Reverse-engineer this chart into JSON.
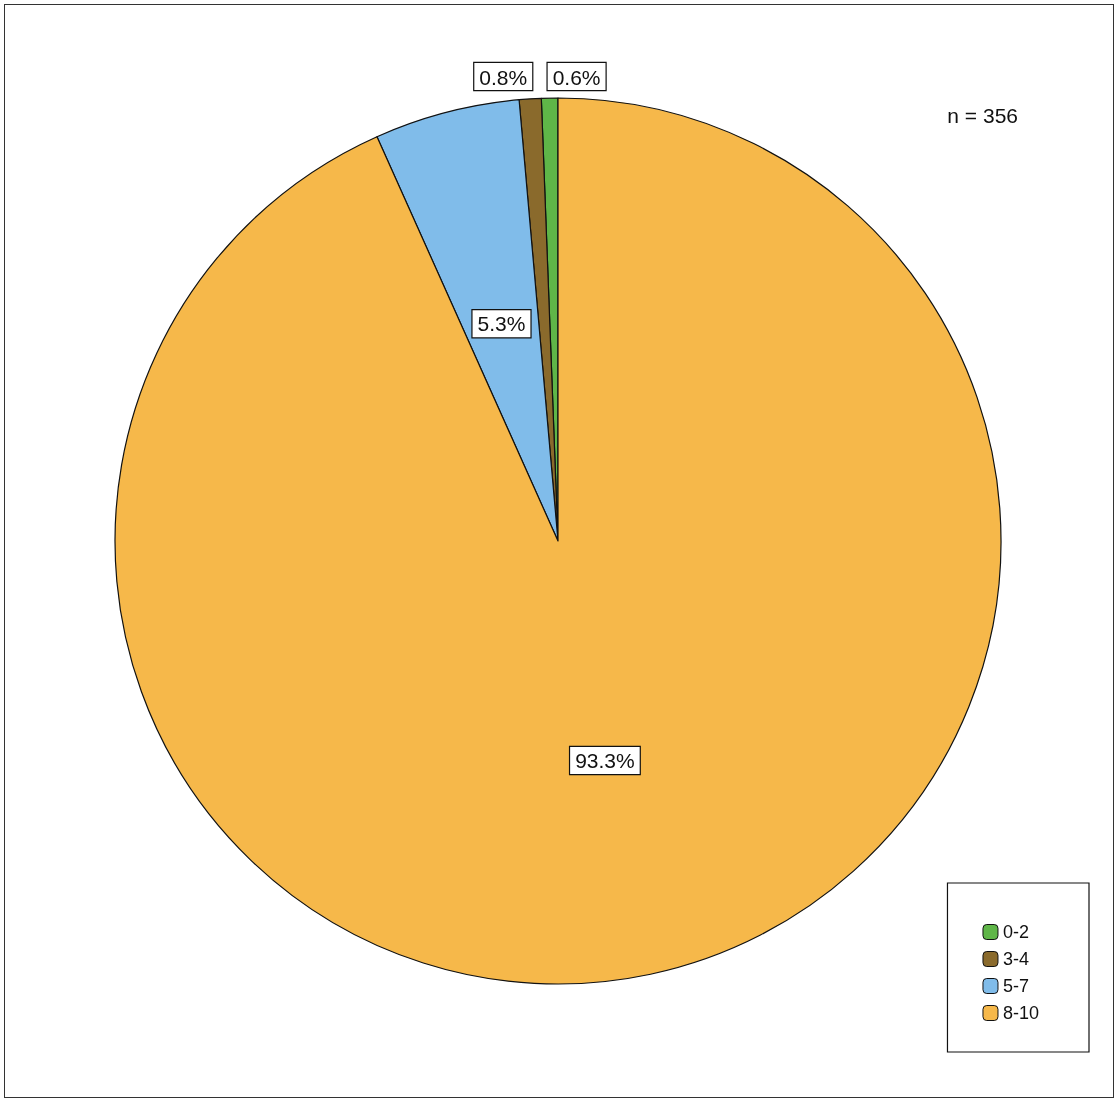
{
  "chart_data": {
    "type": "pie",
    "categories": [
      "0-2",
      "3-4",
      "5-7",
      "8-10"
    ],
    "values": [
      0.6,
      0.8,
      5.3,
      93.3
    ],
    "value_labels": [
      "0.6%",
      "0.8%",
      "5.3%",
      "93.3%"
    ],
    "colors": [
      "#5fb648",
      "#8a6a2c",
      "#80bcea",
      "#f6b84a"
    ],
    "legend": "bottom right",
    "annotations": [
      "n = 356"
    ]
  }
}
